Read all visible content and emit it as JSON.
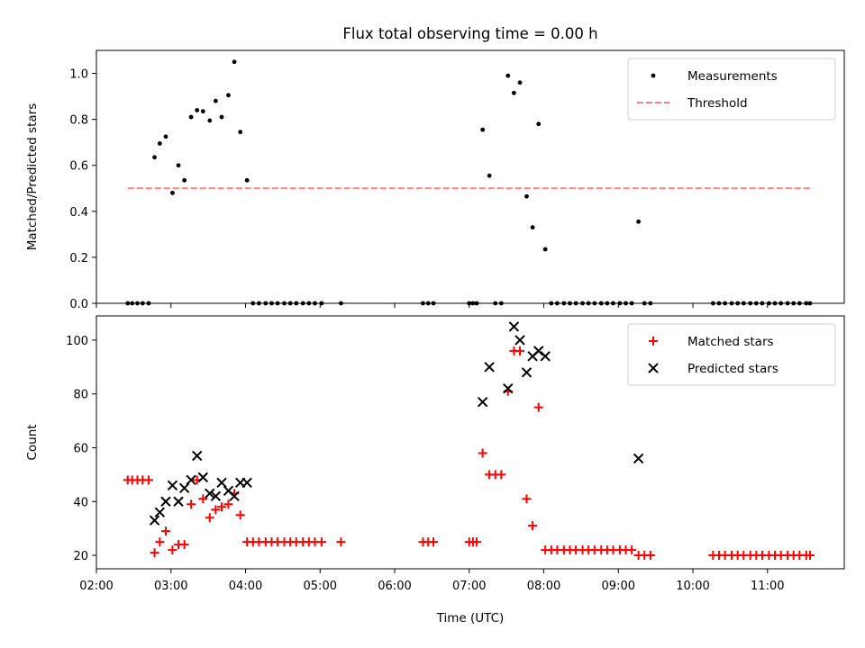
{
  "chart_data": {
    "title": "Flux total observing time = 0.00 h",
    "xlabel": "Time (UTC)",
    "x_unit": "hours UTC",
    "xlim": [
      2.0,
      12.03
    ],
    "x_ticks": [
      2,
      3,
      4,
      5,
      6,
      7,
      8,
      9,
      10,
      11
    ],
    "x_tick_labels": [
      "02:00",
      "03:00",
      "04:00",
      "05:00",
      "06:00",
      "07:00",
      "08:00",
      "09:00",
      "10:00",
      "11:00"
    ],
    "panels": [
      {
        "type": "scatter",
        "ylabel": "Matched/Predicted stars",
        "ylim": [
          0,
          1.1
        ],
        "y_ticks": [
          0.0,
          0.2,
          0.4,
          0.6,
          0.8,
          1.0
        ],
        "y_tick_labels": [
          "0.0",
          "0.2",
          "0.4",
          "0.6",
          "0.8",
          "1.0"
        ],
        "legend_position": "top-right",
        "series": [
          {
            "name": "Measurements",
            "marker": "dot",
            "color": "#000000",
            "x": [
              2.42,
              2.48,
              2.55,
              2.62,
              2.7,
              2.78,
              2.85,
              2.93,
              3.02,
              3.1,
              3.18,
              3.27,
              3.35,
              3.43,
              3.52,
              3.6,
              3.68,
              3.77,
              3.85,
              3.93,
              4.02,
              4.1,
              4.18,
              4.27,
              4.35,
              4.43,
              4.52,
              4.6,
              4.68,
              4.77,
              4.85,
              4.93,
              5.02,
              5.28,
              6.38,
              6.45,
              6.52,
              7.0,
              7.05,
              7.1,
              7.18,
              7.27,
              7.35,
              7.43,
              7.52,
              7.6,
              7.68,
              7.77,
              7.85,
              7.93,
              8.02,
              8.1,
              8.18,
              8.27,
              8.35,
              8.43,
              8.52,
              8.6,
              8.68,
              8.77,
              8.85,
              8.93,
              9.02,
              9.1,
              9.18,
              9.27,
              9.35,
              9.43,
              10.27,
              10.35,
              10.43,
              10.52,
              10.6,
              10.68,
              10.77,
              10.85,
              10.93,
              11.02,
              11.1,
              11.18,
              11.27,
              11.35,
              11.43,
              11.52,
              11.57
            ],
            "y": [
              0.0,
              0.0,
              0.0,
              0.0,
              0.0,
              0.635,
              0.695,
              0.725,
              0.48,
              0.6,
              0.535,
              0.81,
              0.84,
              0.835,
              0.795,
              0.88,
              0.81,
              0.905,
              1.05,
              0.745,
              0.535,
              0.0,
              0.0,
              0.0,
              0.0,
              0.0,
              0.0,
              0.0,
              0.0,
              0.0,
              0.0,
              0.0,
              0.0,
              0.0,
              0.0,
              0.0,
              0.0,
              0.0,
              0.0,
              0.0,
              0.755,
              0.555,
              0.0,
              0.0,
              0.99,
              0.915,
              0.96,
              0.465,
              0.33,
              0.78,
              0.235,
              0.0,
              0.0,
              0.0,
              0.0,
              0.0,
              0.0,
              0.0,
              0.0,
              0.0,
              0.0,
              0.0,
              0.0,
              0.0,
              0.0,
              0.355,
              0.0,
              0.0,
              0.0,
              0.0,
              0.0,
              0.0,
              0.0,
              0.0,
              0.0,
              0.0,
              0.0,
              0.0,
              0.0,
              0.0,
              0.0,
              0.0,
              0.0,
              0.0,
              0.0
            ]
          },
          {
            "name": "Threshold",
            "marker": "dashed-line",
            "color": "#ff8080",
            "x": [
              2.42,
              11.57
            ],
            "y": [
              0.5,
              0.5
            ]
          }
        ]
      },
      {
        "type": "scatter",
        "ylabel": "Count",
        "ylim": [
          15,
          109
        ],
        "y_ticks": [
          20,
          40,
          60,
          80,
          100
        ],
        "y_tick_labels": [
          "20",
          "40",
          "60",
          "80",
          "100"
        ],
        "legend_position": "top-right",
        "series": [
          {
            "name": "Matched stars",
            "marker": "plus",
            "color": "#ff0000",
            "x": [
              2.42,
              2.48,
              2.55,
              2.62,
              2.7,
              2.78,
              2.85,
              2.93,
              3.02,
              3.1,
              3.18,
              3.27,
              3.35,
              3.43,
              3.52,
              3.6,
              3.68,
              3.77,
              3.85,
              3.93,
              4.02,
              4.1,
              4.18,
              4.27,
              4.35,
              4.43,
              4.52,
              4.6,
              4.68,
              4.77,
              4.85,
              4.93,
              5.02,
              5.28,
              6.38,
              6.45,
              6.52,
              7.0,
              7.05,
              7.1,
              7.18,
              7.27,
              7.35,
              7.43,
              7.52,
              7.6,
              7.68,
              7.77,
              7.85,
              7.93,
              8.02,
              8.1,
              8.18,
              8.27,
              8.35,
              8.43,
              8.52,
              8.6,
              8.68,
              8.77,
              8.85,
              8.93,
              9.02,
              9.1,
              9.18,
              9.27,
              9.35,
              9.43,
              10.27,
              10.35,
              10.43,
              10.52,
              10.6,
              10.68,
              10.77,
              10.85,
              10.93,
              11.02,
              11.1,
              11.18,
              11.27,
              11.35,
              11.43,
              11.52,
              11.57
            ],
            "y": [
              48,
              48,
              48,
              48,
              48,
              21,
              25,
              29,
              22,
              24,
              24,
              39,
              48,
              41,
              34,
              37,
              38,
              39,
              43,
              35,
              25,
              25,
              25,
              25,
              25,
              25,
              25,
              25,
              25,
              25,
              25,
              25,
              25,
              25,
              25,
              25,
              25,
              25,
              25,
              25,
              58,
              50,
              50,
              50,
              81,
              96,
              96,
              41,
              31,
              75,
              22,
              22,
              22,
              22,
              22,
              22,
              22,
              22,
              22,
              22,
              22,
              22,
              22,
              22,
              22,
              20,
              20,
              20,
              20,
              20,
              20,
              20,
              20,
              20,
              20,
              20,
              20,
              20,
              20,
              20,
              20,
              20,
              20,
              20,
              20
            ]
          },
          {
            "name": "Predicted stars",
            "marker": "x",
            "color": "#000000",
            "x": [
              2.78,
              2.85,
              2.93,
              3.02,
              3.1,
              3.18,
              3.27,
              3.35,
              3.43,
              3.52,
              3.6,
              3.68,
              3.77,
              3.85,
              3.93,
              4.02,
              7.18,
              7.27,
              7.52,
              7.6,
              7.68,
              7.77,
              7.85,
              7.93,
              8.02,
              9.27
            ],
            "y": [
              33,
              36,
              40,
              46,
              40,
              45,
              48,
              57,
              49,
              43,
              42,
              47,
              44,
              42,
              47,
              47,
              77,
              90,
              82,
              105,
              100,
              88,
              94,
              96,
              94,
              56
            ]
          }
        ]
      }
    ]
  }
}
